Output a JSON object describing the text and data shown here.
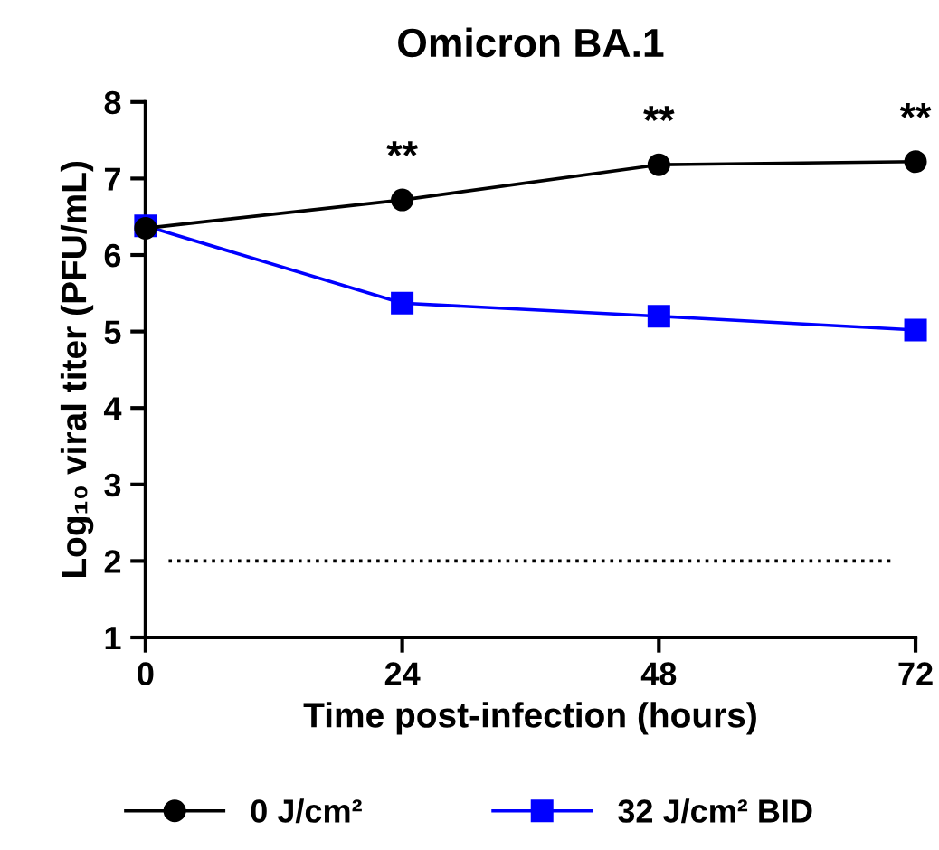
{
  "chart_data": {
    "type": "line",
    "title": "Omicron BA.1",
    "xlabel": "Time post-infection (hours)",
    "ylabel": "Log₁₀ viral titer (PFU/mL)",
    "x": [
      0,
      24,
      48,
      72
    ],
    "series": [
      {
        "name": "0 J/cm²",
        "color": "#000000",
        "values": [
          6.35,
          6.72,
          7.18,
          7.22
        ],
        "marker": "circle"
      },
      {
        "name": "32 J/cm² BID",
        "color": "#0000ff",
        "values": [
          6.38,
          5.37,
          5.2,
          5.02
        ],
        "marker": "square"
      }
    ],
    "xlim": [
      0,
      72
    ],
    "xticks": [
      0,
      24,
      48,
      72
    ],
    "ylim": [
      1,
      8
    ],
    "yticks": [
      1,
      2,
      3,
      4,
      5,
      6,
      7,
      8
    ],
    "ref_lines": [
      {
        "axis": "y",
        "value": 2,
        "color": "#000000",
        "line_style": "dotted"
      }
    ],
    "annotations": [
      {
        "text": "**",
        "x": 24,
        "y": 6.72
      },
      {
        "text": "**",
        "x": 48,
        "y": 7.18
      },
      {
        "text": "**",
        "x": 72,
        "y": 7.22
      }
    ],
    "grid": false,
    "legend": "bottom",
    "line_style": "solid"
  }
}
